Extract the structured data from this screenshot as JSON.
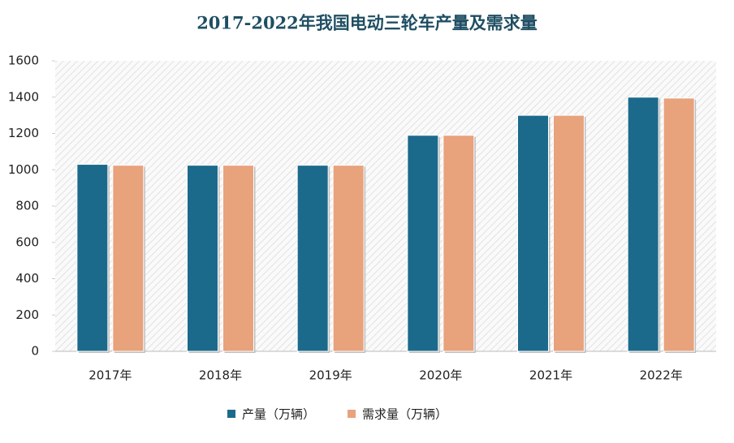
{
  "chart_data": {
    "type": "bar",
    "title": "2017-2022年我国电动三轮车产量及需求量",
    "categories": [
      "2017年",
      "2018年",
      "2019年",
      "2020年",
      "2021年",
      "2022年"
    ],
    "series": [
      {
        "name": "产量（万辆）",
        "color": "#1c6a8b",
        "values": [
          1030,
          1025,
          1025,
          1190,
          1300,
          1400
        ]
      },
      {
        "name": "需求量（万辆）",
        "color": "#e8a27c",
        "values": [
          1025,
          1025,
          1025,
          1190,
          1300,
          1395
        ]
      }
    ],
    "ylim": [
      0,
      1600
    ],
    "yticks": [
      0,
      200,
      400,
      600,
      800,
      1000,
      1200,
      1400,
      1600
    ],
    "legend": "bottom"
  }
}
